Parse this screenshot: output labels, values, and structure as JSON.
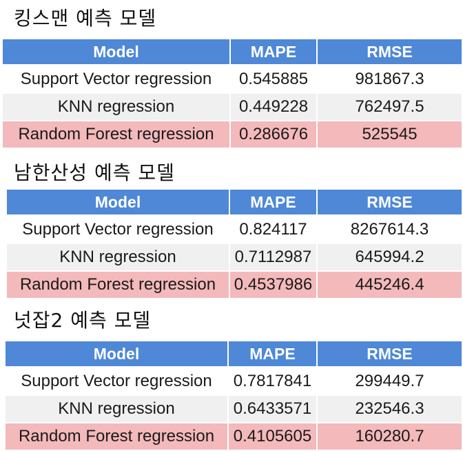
{
  "tables": [
    {
      "title": "킹스맨  예측 모델",
      "headers": [
        "Model",
        "MAPE",
        "RMSE"
      ],
      "rows": [
        {
          "model": "Support Vector regression",
          "mape": "0.545885",
          "rmse": "981867.3"
        },
        {
          "model": "KNN regression",
          "mape": "0.449228",
          "rmse": "762497.5"
        },
        {
          "model": "Random Forest regression",
          "mape": "0.286676",
          "rmse": "525545"
        }
      ]
    },
    {
      "title": "남한산성 예측 모델",
      "headers": [
        "Model",
        "MAPE",
        "RMSE"
      ],
      "rows": [
        {
          "model": "Support Vector regression",
          "mape": "0.824117",
          "rmse": "8267614.3"
        },
        {
          "model": "KNN regression",
          "mape": "0.7112987",
          "rmse": "645994.2"
        },
        {
          "model": "Random Forest regression",
          "mape": "0.4537986",
          "rmse": "445246.4"
        }
      ]
    },
    {
      "title": "넛잡2 예측 모델",
      "headers": [
        "Model",
        "MAPE",
        "RMSE"
      ],
      "rows": [
        {
          "model": "Support Vector regression",
          "mape": "0.7817841",
          "rmse": "299449.7"
        },
        {
          "model": "KNN regression",
          "mape": "0.6433571",
          "rmse": "232546.3"
        },
        {
          "model": "Random Forest regression",
          "mape": "0.4105605",
          "rmse": "160280.7"
        }
      ]
    }
  ],
  "colors": {
    "header_bg": "#4e88d6",
    "header_text": "#ffffff",
    "row_white": "#ffffff",
    "row_gray": "#f0f0f0",
    "highlight_row": "#f4b9bb"
  }
}
